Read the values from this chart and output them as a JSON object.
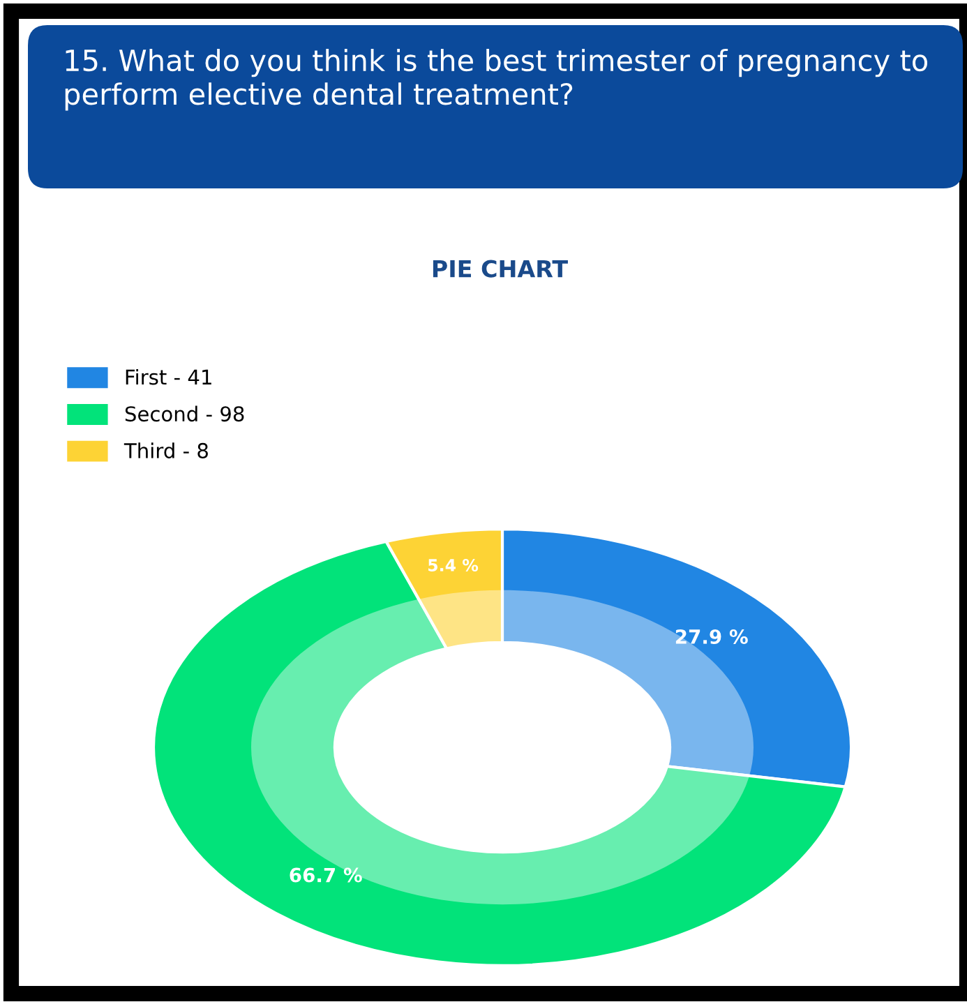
{
  "chart_data": {
    "type": "donut",
    "title": "15. What do you think is the best trimester of pregnancy to perform elective dental treatment?",
    "subtitle": "PIE CHART",
    "categories": [
      "First - 41",
      "Second - 98",
      "Third - 8"
    ],
    "values": [
      27.9,
      66.7,
      5.4
    ],
    "colors": [
      "#2186e3",
      "#02e37a",
      "#fdd335"
    ],
    "value_labels": [
      "27.9 %",
      "66.7 %",
      "5.4 %"
    ],
    "legend": "top left"
  }
}
